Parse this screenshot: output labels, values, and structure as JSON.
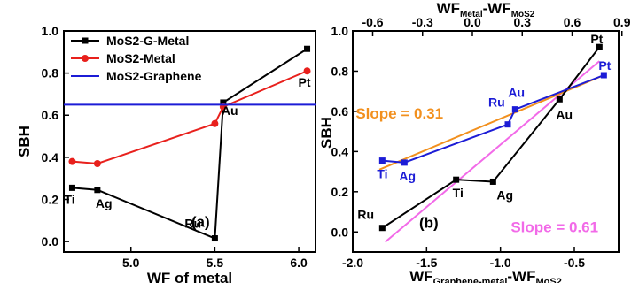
{
  "chart_data": [
    {
      "type": "line",
      "panel_label": "(a)",
      "xlabel": "WF of metal",
      "ylabel": "SBH",
      "xlim": [
        4.6,
        6.1
      ],
      "ylim": [
        -0.05,
        1.0
      ],
      "xticks": [
        "5.0",
        "5.5",
        "6.0"
      ],
      "yticks": [
        "0.0",
        "0.2",
        "0.4",
        "0.6",
        "0.8",
        "1.0"
      ],
      "legend_position": "top-left",
      "series": [
        {
          "name": "MoS2-G-Metal",
          "color": "#000000",
          "marker": "square",
          "x": [
            4.65,
            4.8,
            5.5,
            5.55,
            6.05
          ],
          "y": [
            0.255,
            0.245,
            0.015,
            0.66,
            0.915
          ]
        },
        {
          "name": "MoS2-Metal",
          "color": "#e8201c",
          "marker": "circle",
          "x": [
            4.65,
            4.8,
            5.5,
            5.55,
            6.05
          ],
          "y": [
            0.38,
            0.37,
            0.56,
            0.64,
            0.81
          ]
        },
        {
          "name": "MoS2-Graphene",
          "color": "#1c1cd6",
          "marker": "none",
          "x": [
            4.6,
            6.1
          ],
          "y": [
            0.65,
            0.65
          ]
        }
      ],
      "point_labels": [
        {
          "text": "Ti",
          "color": "#000000"
        },
        {
          "text": "Ag",
          "color": "#000000"
        },
        {
          "text": "Ru",
          "color": "#000000"
        },
        {
          "text": "Au",
          "color": "#000000"
        },
        {
          "text": "Pt",
          "color": "#000000"
        }
      ]
    },
    {
      "type": "line",
      "panel_label": "(b)",
      "xlabel_main": "WF",
      "xlabel_sub1": "Graphene-metal",
      "xlabel_mid": "-WF",
      "xlabel_sub2": "MoS2",
      "top_xlabel_main": "WF",
      "top_xlabel_sub1": "Metal",
      "top_xlabel_mid": "-WF",
      "top_xlabel_sub2": "MoS2",
      "ylabel": "SBH",
      "xlim": [
        -2.0,
        -0.2
      ],
      "ylim": [
        -0.1,
        1.0
      ],
      "top_xlim": [
        -0.72,
        0.88
      ],
      "xticks": [
        "-2.0",
        "-1.5",
        "-1.0",
        "-0.5"
      ],
      "top_xticks": [
        "-0.6",
        "-0.3",
        "0.0",
        "0.3",
        "0.6",
        "0.9"
      ],
      "yticks": [
        "0.0",
        "0.2",
        "0.4",
        "0.6",
        "0.8",
        "1.0"
      ],
      "series": [
        {
          "name": "",
          "color": "#000000",
          "marker": "square",
          "x": [
            -1.8,
            -1.3,
            -1.05,
            -0.6,
            -0.33
          ],
          "y": [
            0.02,
            0.26,
            0.25,
            0.66,
            0.92
          ]
        },
        {
          "name": "",
          "color": "#1c1cd6",
          "marker": "square",
          "x": [
            -1.8,
            -1.65,
            -0.95,
            -0.9,
            -0.3
          ],
          "y": [
            0.355,
            0.345,
            0.535,
            0.61,
            0.78
          ]
        },
        {
          "name": "",
          "color": "#f2901e",
          "marker": "none",
          "x": [
            -1.82,
            -0.3
          ],
          "y": [
            0.31,
            0.78
          ]
        },
        {
          "name": "",
          "color": "#f26ae8",
          "marker": "none",
          "x": [
            -1.78,
            -0.33
          ],
          "y": [
            -0.05,
            0.85
          ]
        }
      ],
      "point_labels": [
        {
          "text": "Ru",
          "color": "#000000"
        },
        {
          "text": "Ti",
          "color": "#000000"
        },
        {
          "text": "Ag",
          "color": "#000000"
        },
        {
          "text": "Au",
          "color": "#000000"
        },
        {
          "text": "Pt",
          "color": "#000000"
        },
        {
          "text": "Ti",
          "color": "#1c1cd6"
        },
        {
          "text": "Ag",
          "color": "#1c1cd6"
        },
        {
          "text": "Ru",
          "color": "#1c1cd6"
        },
        {
          "text": "Au",
          "color": "#1c1cd6"
        },
        {
          "text": "Pt",
          "color": "#1c1cd6"
        }
      ],
      "annotations": [
        {
          "text": "Slope = 0.31",
          "color": "#f2901e"
        },
        {
          "text": "Slope = 0.61",
          "color": "#f26ae8"
        }
      ]
    }
  ]
}
